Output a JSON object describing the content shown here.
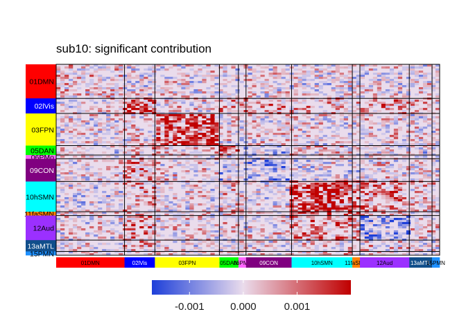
{
  "chart_data": {
    "type": "heatmap",
    "title": "sub10: significant contribution",
    "networks": [
      {
        "label": "01DMN",
        "color": "#ff0000",
        "text_color": "#000000",
        "size": 18
      },
      {
        "label": "02lVis",
        "color": "#0000ff",
        "text_color": "#ffffff",
        "size": 8
      },
      {
        "label": "03FPN",
        "color": "#ffff00",
        "text_color": "#000000",
        "size": 17
      },
      {
        "label": "05DAN",
        "color": "#00ff00",
        "text_color": "#000000",
        "size": 5
      },
      {
        "label": "06PMo",
        "color": "#ff66ff",
        "text_color": "#000000",
        "size": 2
      },
      {
        "label": "09CON",
        "color": "#800080",
        "text_color": "#ffffff",
        "size": 12
      },
      {
        "label": "10hSMN",
        "color": "#00ffff",
        "text_color": "#000000",
        "size": 16
      },
      {
        "label": "11faSMN",
        "color": "#ff8000",
        "text_color": "#000000",
        "size": 2
      },
      {
        "label": "12Aud",
        "color": "#9b30ff",
        "text_color": "#000000",
        "size": 13
      },
      {
        "label": "13aMTL",
        "color": "#104e8b",
        "text_color": "#ffffff",
        "size": 6
      },
      {
        "label": "15PMN",
        "color": "#1e90ff",
        "text_color": "#000000",
        "size": 2
      }
    ],
    "block_means": [
      [
        0.1,
        0.0,
        0.0,
        -0.05,
        0.0,
        0.0,
        -0.05,
        0.0,
        0.0,
        0.0,
        0.0
      ],
      [
        0.0,
        0.55,
        0.05,
        0.2,
        0.2,
        0.25,
        0.2,
        0.1,
        0.25,
        0.2,
        0.1
      ],
      [
        0.0,
        0.05,
        0.55,
        0.05,
        0.05,
        0.05,
        0.0,
        0.0,
        0.05,
        0.0,
        0.0
      ],
      [
        -0.05,
        0.2,
        0.05,
        0.5,
        -0.1,
        -0.2,
        0.1,
        0.1,
        0.05,
        -0.1,
        0.0
      ],
      [
        0.0,
        0.2,
        0.05,
        -0.1,
        0.1,
        -0.1,
        0.05,
        0.05,
        0.0,
        0.0,
        0.0
      ],
      [
        0.0,
        0.25,
        0.05,
        -0.2,
        -0.1,
        -0.3,
        -0.05,
        -0.05,
        0.05,
        -0.05,
        0.0
      ],
      [
        -0.05,
        0.2,
        0.0,
        0.1,
        0.05,
        -0.05,
        0.6,
        0.4,
        0.3,
        0.1,
        0.1
      ],
      [
        0.0,
        0.1,
        0.0,
        0.1,
        0.05,
        -0.05,
        0.4,
        0.2,
        0.2,
        0.05,
        0.05
      ],
      [
        0.0,
        0.25,
        0.05,
        0.05,
        0.0,
        0.05,
        0.3,
        0.2,
        -0.35,
        0.1,
        0.05
      ],
      [
        0.0,
        0.2,
        0.0,
        -0.1,
        0.0,
        -0.05,
        0.1,
        0.05,
        0.1,
        -0.05,
        0.0
      ],
      [
        0.0,
        0.1,
        0.0,
        0.0,
        0.0,
        0.0,
        0.1,
        0.05,
        0.05,
        0.0,
        0.0
      ]
    ],
    "legend": {
      "ticks": [
        -0.001,
        0.0,
        0.001
      ],
      "tick_labels": [
        "-0.001",
        "0.000",
        "0.001"
      ],
      "range": [
        -0.0017,
        0.002
      ],
      "colors": [
        "#1d3fd9",
        "#eadcec",
        "#c00000"
      ],
      "placement": "bottom"
    },
    "grid": false
  }
}
